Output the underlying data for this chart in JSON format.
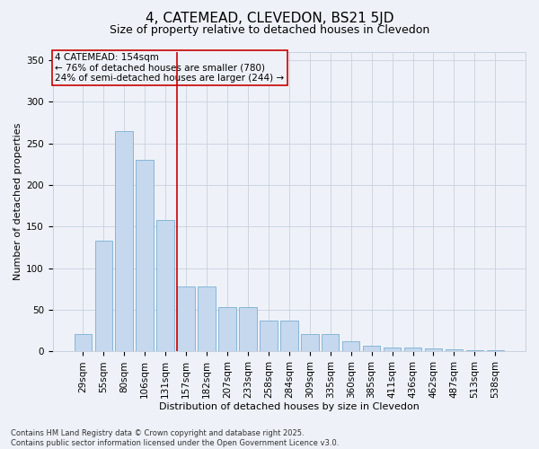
{
  "title_line1": "4, CATEMEAD, CLEVEDON, BS21 5JD",
  "title_line2": "Size of property relative to detached houses in Clevedon",
  "xlabel": "Distribution of detached houses by size in Clevedon",
  "ylabel": "Number of detached properties",
  "categories": [
    "29sqm",
    "55sqm",
    "80sqm",
    "106sqm",
    "131sqm",
    "157sqm",
    "182sqm",
    "207sqm",
    "233sqm",
    "258sqm",
    "284sqm",
    "309sqm",
    "335sqm",
    "360sqm",
    "385sqm",
    "411sqm",
    "436sqm",
    "462sqm",
    "487sqm",
    "513sqm",
    "538sqm"
  ],
  "values": [
    21,
    133,
    265,
    230,
    158,
    78,
    78,
    53,
    53,
    37,
    37,
    21,
    21,
    12,
    7,
    5,
    5,
    4,
    3,
    2,
    2
  ],
  "bar_color": "#c5d8ee",
  "bar_edge_color": "#7aafd4",
  "vline_color": "#cc0000",
  "vline_pos": 4.575,
  "annotation_text": "4 CATEMEAD: 154sqm\n← 76% of detached houses are smaller (780)\n24% of semi-detached houses are larger (244) →",
  "annotation_box_color": "#cc0000",
  "ylim": [
    0,
    360
  ],
  "yticks": [
    0,
    50,
    100,
    150,
    200,
    250,
    300,
    350
  ],
  "footer_text": "Contains HM Land Registry data © Crown copyright and database right 2025.\nContains public sector information licensed under the Open Government Licence v3.0.",
  "bg_color": "#eef2f8",
  "grid_color": "#c8d0de",
  "title_fontsize": 11,
  "subtitle_fontsize": 9,
  "axis_label_fontsize": 8,
  "tick_fontsize": 7.5,
  "annotation_fontsize": 7.5,
  "footer_fontsize": 6
}
